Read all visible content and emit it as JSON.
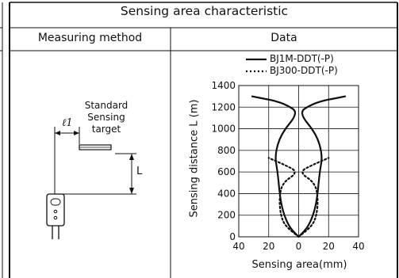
{
  "section_title": "Sensing area characteristic",
  "columns": {
    "method": "Measuring method",
    "data": "Data"
  },
  "diagram": {
    "target_label_1": "Standard",
    "target_label_2": "Sensing",
    "target_label_3": "target",
    "offset_label": "ℓ1",
    "distance_label": "L"
  },
  "chart_data": {
    "type": "line",
    "title": "",
    "xlabel": "Sensing area(mm)",
    "ylabel": "Sensing distance L (m)",
    "xlim": [
      -40,
      40
    ],
    "ylim": [
      0,
      1400
    ],
    "xticks": [
      -40,
      -20,
      0,
      20,
      40
    ],
    "xtick_labels": [
      "40",
      "20",
      "0",
      "20",
      "40"
    ],
    "yticks": [
      0,
      200,
      400,
      600,
      800,
      1000,
      1200,
      1400
    ],
    "grid": true,
    "legend_position": "top-right",
    "series": [
      {
        "name": "BJ1M-DDT(-P)",
        "style": "solid",
        "right": [
          [
            0,
            0
          ],
          [
            7,
            100
          ],
          [
            12,
            300
          ],
          [
            14,
            600
          ],
          [
            16,
            750
          ],
          [
            12,
            950
          ],
          [
            0,
            1150
          ],
          [
            8,
            1220
          ],
          [
            16,
            1260
          ],
          [
            24,
            1280
          ],
          [
            31,
            1300
          ]
        ],
        "left": [
          [
            0,
            0
          ],
          [
            -7,
            100
          ],
          [
            -12,
            300
          ],
          [
            -14,
            600
          ],
          [
            -16,
            750
          ],
          [
            -12,
            950
          ],
          [
            0,
            1150
          ],
          [
            -8,
            1220
          ],
          [
            -16,
            1260
          ],
          [
            -24,
            1280
          ],
          [
            -31,
            1300
          ]
        ]
      },
      {
        "name": "BJ300-DDT(-P)",
        "style": "dotted",
        "right": [
          [
            0,
            0
          ],
          [
            9,
            100
          ],
          [
            12,
            200
          ],
          [
            13,
            350
          ],
          [
            11,
            500
          ],
          [
            0,
            600
          ],
          [
            10,
            670
          ],
          [
            20,
            730
          ]
        ],
        "left": [
          [
            0,
            0
          ],
          [
            -9,
            100
          ],
          [
            -12,
            200
          ],
          [
            -13,
            350
          ],
          [
            -11,
            500
          ],
          [
            0,
            600
          ],
          [
            -10,
            670
          ],
          [
            -20,
            730
          ]
        ]
      }
    ]
  }
}
